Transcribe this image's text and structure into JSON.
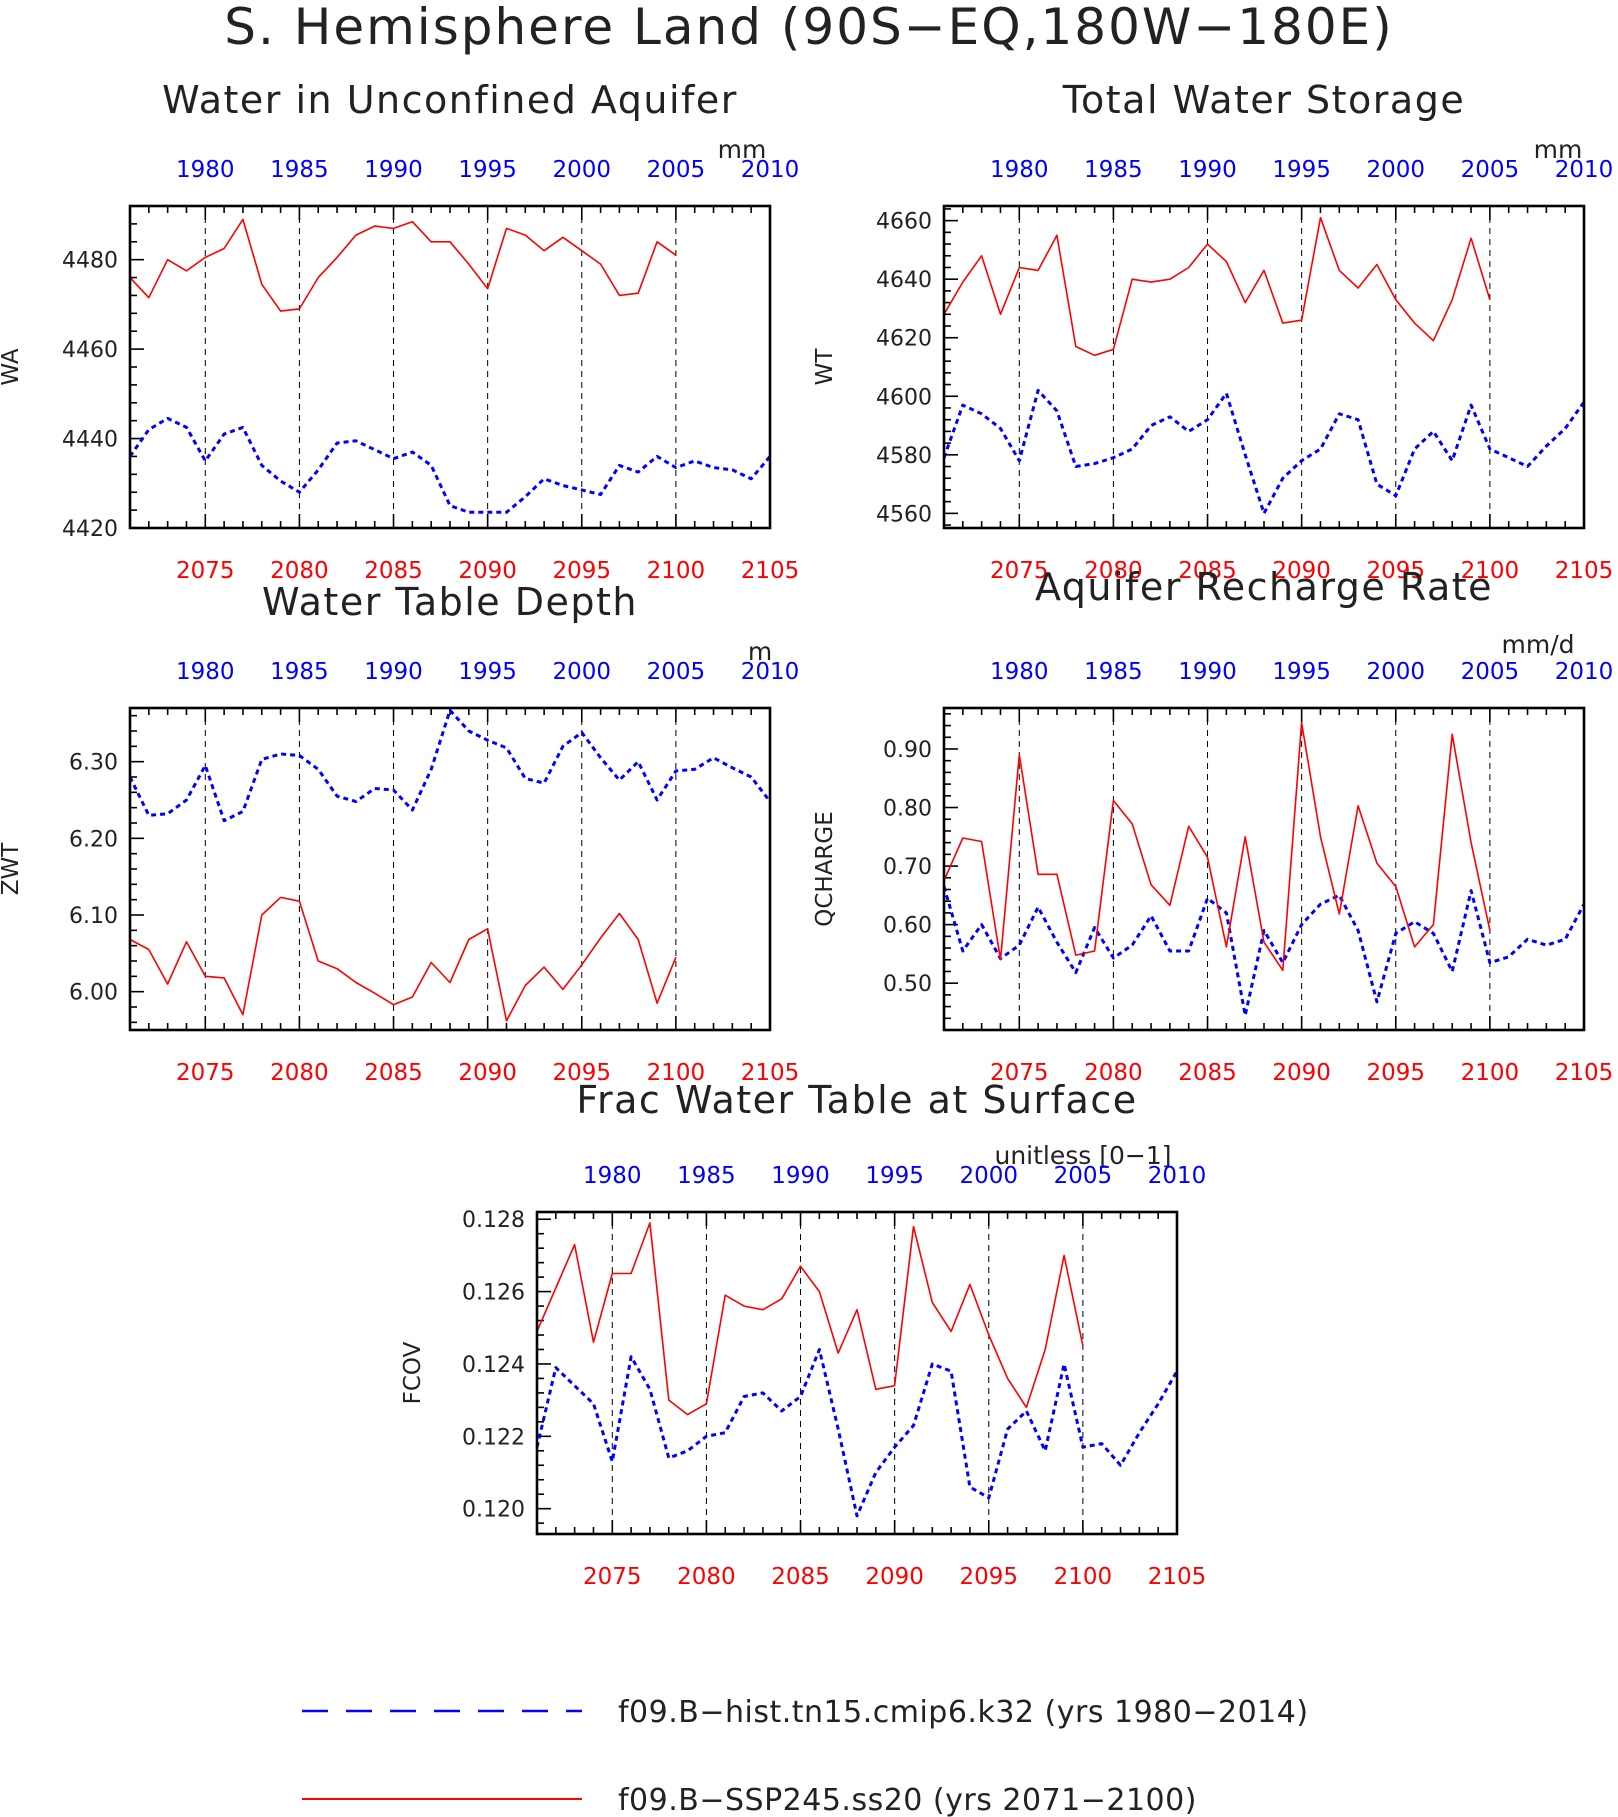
{
  "figure_title": "S. Hemisphere Land (90S−EQ,180W−180E)",
  "colors": {
    "hist": "#0000ff",
    "ssp": "#ff0000",
    "axes": "#000000",
    "text": "#222222"
  },
  "legend": [
    {
      "label": "f09.B−hist.tn15.cmip6.k32 (yrs 1980−2014)",
      "color": "#0000ff",
      "style": "dashed"
    },
    {
      "label": "f09.B−SSP245.ss20 (yrs 2071−2100)",
      "color": "#ff0000",
      "style": "solid"
    }
  ],
  "chart_data": [
    {
      "type": "line",
      "title": "Water in Unconfined Aquifer",
      "units": "mm",
      "ylabel": "WA",
      "ylim": [
        4420,
        4492
      ],
      "yticks": [
        4420,
        4440,
        4460,
        4480
      ],
      "ytick_labels": [
        "4420",
        "4440",
        "4460",
        "4480"
      ],
      "top_axis": {
        "range": [
          1976,
          2010
        ],
        "ticks": [
          1980,
          1985,
          1990,
          1995,
          2000,
          2005,
          2010
        ],
        "color": "#0000ff"
      },
      "bottom_axis": {
        "range": [
          2071,
          2105
        ],
        "ticks": [
          2075,
          2080,
          2085,
          2090,
          2095,
          2100,
          2105
        ],
        "color": "#ff0000"
      },
      "series": [
        {
          "name": "f09.B−hist.tn15.cmip6.k32",
          "axis": "top",
          "color": "#0000ff",
          "style": "dashed",
          "x": [
            1976,
            1977,
            1978,
            1979,
            1980,
            1981,
            1982,
            1983,
            1984,
            1985,
            1986,
            1987,
            1988,
            1989,
            1990,
            1991,
            1992,
            1993,
            1994,
            1995,
            1996,
            1997,
            1998,
            1999,
            2000,
            2001,
            2002,
            2003,
            2004,
            2005,
            2006,
            2007,
            2008,
            2009,
            2010
          ],
          "values": [
            4436,
            4442,
            4444.5,
            4442.5,
            4435,
            4441,
            4442.5,
            4434,
            4430.5,
            4428,
            4433,
            4439,
            4439.5,
            4437.5,
            4435.5,
            4437,
            4434,
            4425,
            4423.5,
            4423.5,
            4423.5,
            4427,
            4431,
            4429.5,
            4428.5,
            4427.5,
            4434,
            4432.5,
            4436,
            4433.5,
            4435,
            4433.5,
            4433,
            4431,
            4436
          ]
        },
        {
          "name": "f09.B−SSP245.ss20",
          "axis": "bottom",
          "color": "#ff0000",
          "style": "solid",
          "x": [
            2071,
            2072,
            2073,
            2074,
            2075,
            2076,
            2077,
            2078,
            2079,
            2080,
            2081,
            2082,
            2083,
            2084,
            2085,
            2086,
            2087,
            2088,
            2089,
            2090,
            2091,
            2092,
            2093,
            2094,
            2095,
            2096,
            2097,
            2098,
            2099,
            2100
          ],
          "values": [
            4476,
            4471.5,
            4480,
            4477.5,
            4480.5,
            4482.5,
            4489,
            4474.5,
            4468.5,
            4469,
            4476,
            4480.5,
            4485.5,
            4487.5,
            4487,
            4488.5,
            4484,
            4484,
            4479,
            4473.5,
            4487,
            4485.5,
            4482,
            4485,
            4482,
            4479,
            4472,
            4472.5,
            4484,
            4481
          ]
        }
      ]
    },
    {
      "type": "line",
      "title": "Total Water Storage",
      "units": "mm",
      "ylabel": "WT",
      "ylim": [
        4555,
        4665
      ],
      "yticks": [
        4560,
        4580,
        4600,
        4620,
        4640,
        4660
      ],
      "ytick_labels": [
        "4560",
        "4580",
        "4600",
        "4620",
        "4640",
        "4660"
      ],
      "top_axis": {
        "range": [
          1976,
          2010
        ],
        "ticks": [
          1980,
          1985,
          1990,
          1995,
          2000,
          2005,
          2010
        ],
        "color": "#0000ff"
      },
      "bottom_axis": {
        "range": [
          2071,
          2105
        ],
        "ticks": [
          2075,
          2080,
          2085,
          2090,
          2095,
          2100,
          2105
        ],
        "color": "#ff0000"
      },
      "series": [
        {
          "name": "f09.B−hist.tn15.cmip6.k32",
          "axis": "top",
          "color": "#0000ff",
          "style": "dashed",
          "x": [
            1976,
            1977,
            1978,
            1979,
            1980,
            1981,
            1982,
            1983,
            1984,
            1985,
            1986,
            1987,
            1988,
            1989,
            1990,
            1991,
            1992,
            1993,
            1994,
            1995,
            1996,
            1997,
            1998,
            1999,
            2000,
            2001,
            2002,
            2003,
            2004,
            2005,
            2006,
            2007,
            2008,
            2009,
            2010
          ],
          "values": [
            4579,
            4597,
            4594,
            4589,
            4578,
            4602,
            4595,
            4576,
            4577,
            4579,
            4582,
            4590,
            4593,
            4588,
            4592,
            4601,
            4580,
            4560,
            4572,
            4578,
            4582,
            4594,
            4592,
            4570,
            4566,
            4582,
            4588,
            4578,
            4597,
            4582,
            4579,
            4576,
            4583,
            4589,
            4598
          ]
        },
        {
          "name": "f09.B−SSP245.ss20",
          "axis": "bottom",
          "color": "#ff0000",
          "style": "solid",
          "x": [
            2071,
            2072,
            2073,
            2074,
            2075,
            2076,
            2077,
            2078,
            2079,
            2080,
            2081,
            2082,
            2083,
            2084,
            2085,
            2086,
            2087,
            2088,
            2089,
            2090,
            2091,
            2092,
            2093,
            2094,
            2095,
            2096,
            2097,
            2098,
            2099,
            2100
          ],
          "values": [
            4628,
            4639,
            4648,
            4628,
            4644,
            4643,
            4655,
            4617,
            4614,
            4616,
            4640,
            4639,
            4640,
            4644,
            4652,
            4646,
            4632,
            4643,
            4625,
            4626,
            4661,
            4643,
            4637,
            4645,
            4633,
            4625,
            4619,
            4633,
            4654,
            4633
          ]
        }
      ]
    },
    {
      "type": "line",
      "title": "Water Table Depth",
      "units": "m",
      "ylabel": "ZWT",
      "ylim": [
        5.95,
        6.37
      ],
      "yticks": [
        6.0,
        6.1,
        6.2,
        6.3
      ],
      "ytick_labels": [
        "6.00",
        "6.10",
        "6.20",
        "6.30"
      ],
      "top_axis": {
        "range": [
          1976,
          2010
        ],
        "ticks": [
          1980,
          1985,
          1990,
          1995,
          2000,
          2005,
          2010
        ],
        "color": "#0000ff"
      },
      "bottom_axis": {
        "range": [
          2071,
          2105
        ],
        "ticks": [
          2075,
          2080,
          2085,
          2090,
          2095,
          2100,
          2105
        ],
        "color": "#ff0000"
      },
      "series": [
        {
          "name": "f09.B−hist.tn15.cmip6.k32",
          "axis": "top",
          "color": "#0000ff",
          "style": "dashed",
          "x": [
            1976,
            1977,
            1978,
            1979,
            1980,
            1981,
            1982,
            1983,
            1984,
            1985,
            1986,
            1987,
            1988,
            1989,
            1990,
            1991,
            1992,
            1993,
            1994,
            1995,
            1996,
            1997,
            1998,
            1999,
            2000,
            2001,
            2002,
            2003,
            2004,
            2005,
            2006,
            2007,
            2008,
            2009,
            2010
          ],
          "values": [
            6.28,
            6.23,
            6.232,
            6.25,
            6.295,
            6.223,
            6.235,
            6.303,
            6.31,
            6.308,
            6.29,
            6.255,
            6.248,
            6.265,
            6.263,
            6.237,
            6.29,
            6.367,
            6.34,
            6.328,
            6.318,
            6.278,
            6.272,
            6.32,
            6.338,
            6.305,
            6.276,
            6.3,
            6.25,
            6.288,
            6.29,
            6.305,
            6.292,
            6.28,
            6.248
          ]
        },
        {
          "name": "f09.B−SSP245.ss20",
          "axis": "bottom",
          "color": "#ff0000",
          "style": "solid",
          "x": [
            2071,
            2072,
            2073,
            2074,
            2075,
            2076,
            2077,
            2078,
            2079,
            2080,
            2081,
            2082,
            2083,
            2084,
            2085,
            2086,
            2087,
            2088,
            2089,
            2090,
            2091,
            2092,
            2093,
            2094,
            2095,
            2096,
            2097,
            2098,
            2099,
            2100
          ],
          "values": [
            6.068,
            6.055,
            6.01,
            6.065,
            6.02,
            6.018,
            5.97,
            6.1,
            6.123,
            6.118,
            6.04,
            6.03,
            6.012,
            5.998,
            5.983,
            5.993,
            6.038,
            6.012,
            6.068,
            6.082,
            5.962,
            6.008,
            6.032,
            6.003,
            6.035,
            6.07,
            6.102,
            6.068,
            5.985,
            6.045
          ]
        }
      ]
    },
    {
      "type": "line",
      "title": "Aquifer Recharge Rate",
      "units": "mm/d",
      "ylabel": "QCHARGE",
      "ylim": [
        0.42,
        0.97
      ],
      "yticks": [
        0.5,
        0.6,
        0.7,
        0.8,
        0.9
      ],
      "ytick_labels": [
        "0.50",
        "0.60",
        "0.70",
        "0.80",
        "0.90"
      ],
      "top_axis": {
        "range": [
          1976,
          2010
        ],
        "ticks": [
          1980,
          1985,
          1990,
          1995,
          2000,
          2005,
          2010
        ],
        "color": "#0000ff"
      },
      "bottom_axis": {
        "range": [
          2071,
          2105
        ],
        "ticks": [
          2075,
          2080,
          2085,
          2090,
          2095,
          2100,
          2105
        ],
        "color": "#ff0000"
      },
      "series": [
        {
          "name": "f09.B−hist.tn15.cmip6.k32",
          "axis": "top",
          "color": "#0000ff",
          "style": "dashed",
          "x": [
            1976,
            1977,
            1978,
            1979,
            1980,
            1981,
            1982,
            1983,
            1984,
            1985,
            1986,
            1987,
            1988,
            1989,
            1990,
            1991,
            1992,
            1993,
            1994,
            1995,
            1996,
            1997,
            1998,
            1999,
            2000,
            2001,
            2002,
            2003,
            2004,
            2005,
            2006,
            2007,
            2008,
            2009,
            2010
          ],
          "values": [
            0.665,
            0.555,
            0.6,
            0.542,
            0.565,
            0.63,
            0.57,
            0.518,
            0.595,
            0.543,
            0.565,
            0.615,
            0.555,
            0.555,
            0.645,
            0.62,
            0.445,
            0.59,
            0.535,
            0.6,
            0.635,
            0.65,
            0.59,
            0.468,
            0.585,
            0.605,
            0.585,
            0.52,
            0.658,
            0.535,
            0.545,
            0.575,
            0.565,
            0.575,
            0.635
          ]
        },
        {
          "name": "f09.B−SSP245.ss20",
          "axis": "bottom",
          "color": "#ff0000",
          "style": "solid",
          "x": [
            2071,
            2072,
            2073,
            2074,
            2075,
            2076,
            2077,
            2078,
            2079,
            2080,
            2081,
            2082,
            2083,
            2084,
            2085,
            2086,
            2087,
            2088,
            2089,
            2090,
            2091,
            2092,
            2093,
            2094,
            2095,
            2096,
            2097,
            2098,
            2099,
            2100
          ],
          "values": [
            0.675,
            0.748,
            0.742,
            0.54,
            0.89,
            0.686,
            0.686,
            0.548,
            0.555,
            0.812,
            0.772,
            0.668,
            0.633,
            0.768,
            0.715,
            0.562,
            0.75,
            0.57,
            0.522,
            0.945,
            0.75,
            0.618,
            0.803,
            0.705,
            0.665,
            0.562,
            0.6,
            0.925,
            0.74,
            0.59
          ]
        }
      ]
    },
    {
      "type": "line",
      "title": "Frac Water Table at Surface",
      "units": "unitless [0−1]",
      "ylabel": "FCOV",
      "ylim": [
        0.1193,
        0.1282
      ],
      "yticks": [
        0.12,
        0.122,
        0.124,
        0.126,
        0.128
      ],
      "ytick_labels": [
        "0.120",
        "0.122",
        "0.124",
        "0.126",
        "0.128"
      ],
      "top_axis": {
        "range": [
          1976,
          2010
        ],
        "ticks": [
          1980,
          1985,
          1990,
          1995,
          2000,
          2005,
          2010
        ],
        "color": "#0000ff"
      },
      "bottom_axis": {
        "range": [
          2071,
          2105
        ],
        "ticks": [
          2075,
          2080,
          2085,
          2090,
          2095,
          2100,
          2105
        ],
        "color": "#ff0000"
      },
      "series": [
        {
          "name": "f09.B−hist.tn15.cmip6.k32",
          "axis": "top",
          "color": "#0000ff",
          "style": "dashed",
          "x": [
            1976,
            1977,
            1978,
            1979,
            1980,
            1981,
            1982,
            1983,
            1984,
            1985,
            1986,
            1987,
            1988,
            1989,
            1990,
            1991,
            1992,
            1993,
            1994,
            1995,
            1996,
            1997,
            1998,
            1999,
            2000,
            2001,
            2002,
            2003,
            2004,
            2005,
            2006,
            2007,
            2008,
            2009,
            2010
          ],
          "values": [
            0.1217,
            0.1239,
            0.1234,
            0.1229,
            0.1213,
            0.1242,
            0.1233,
            0.1214,
            0.1216,
            0.122,
            0.1221,
            0.1231,
            0.1232,
            0.1227,
            0.1231,
            0.1244,
            0.1222,
            0.1198,
            0.121,
            0.1217,
            0.1223,
            0.124,
            0.1238,
            0.1206,
            0.1203,
            0.1222,
            0.1227,
            0.1216,
            0.124,
            0.1217,
            0.1218,
            0.1212,
            0.1221,
            0.1229,
            0.1238
          ]
        },
        {
          "name": "f09.B−SSP245.ss20",
          "axis": "bottom",
          "color": "#ff0000",
          "style": "solid",
          "x": [
            2071,
            2072,
            2073,
            2074,
            2075,
            2076,
            2077,
            2078,
            2079,
            2080,
            2081,
            2082,
            2083,
            2084,
            2085,
            2086,
            2087,
            2088,
            2089,
            2090,
            2091,
            2092,
            2093,
            2094,
            2095,
            2096,
            2097,
            2098,
            2099,
            2100
          ],
          "values": [
            0.1249,
            0.1261,
            0.1273,
            0.1246,
            0.1265,
            0.1265,
            0.1279,
            0.123,
            0.1226,
            0.1229,
            0.1259,
            0.1256,
            0.1255,
            0.1258,
            0.1267,
            0.126,
            0.1243,
            0.1255,
            0.1233,
            0.1234,
            0.1278,
            0.1257,
            0.1249,
            0.1262,
            0.1248,
            0.1236,
            0.1228,
            0.1244,
            0.127,
            0.1245
          ]
        }
      ]
    }
  ]
}
